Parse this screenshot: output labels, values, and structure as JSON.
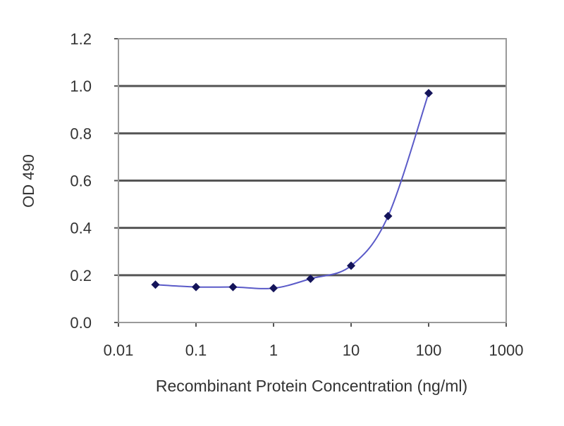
{
  "chart_data": {
    "type": "line",
    "title": "",
    "xlabel": "Recombinant Protein Concentration (ng/ml)",
    "ylabel": "OD 490",
    "xscale": "log",
    "xlim": [
      0.01,
      1000
    ],
    "ylim": [
      0.0,
      1.2
    ],
    "xticks": [
      "0.01",
      "0.1",
      "1",
      "10",
      "100",
      "1000"
    ],
    "xtick_values": [
      0.01,
      0.1,
      1,
      10,
      100,
      1000
    ],
    "yticks": [
      "0.0",
      "0.2",
      "0.4",
      "0.6",
      "0.8",
      "1.0",
      "1.2"
    ],
    "ytick_values": [
      0,
      0.2,
      0.4,
      0.6,
      0.8,
      1.0,
      1.2
    ],
    "grid": "horizontal",
    "legend": "none",
    "series": [
      {
        "x": [
          0.03,
          0.1,
          0.3,
          1,
          3,
          10,
          30,
          100
        ],
        "y": [
          0.16,
          0.15,
          0.15,
          0.145,
          0.185,
          0.24,
          0.45,
          0.97
        ],
        "line_color": "#5a5ac8",
        "marker_color": "#14145a",
        "marker": "diamond"
      }
    ],
    "colors": {
      "grid": "#555555",
      "frame": "#9a9a9a"
    }
  }
}
